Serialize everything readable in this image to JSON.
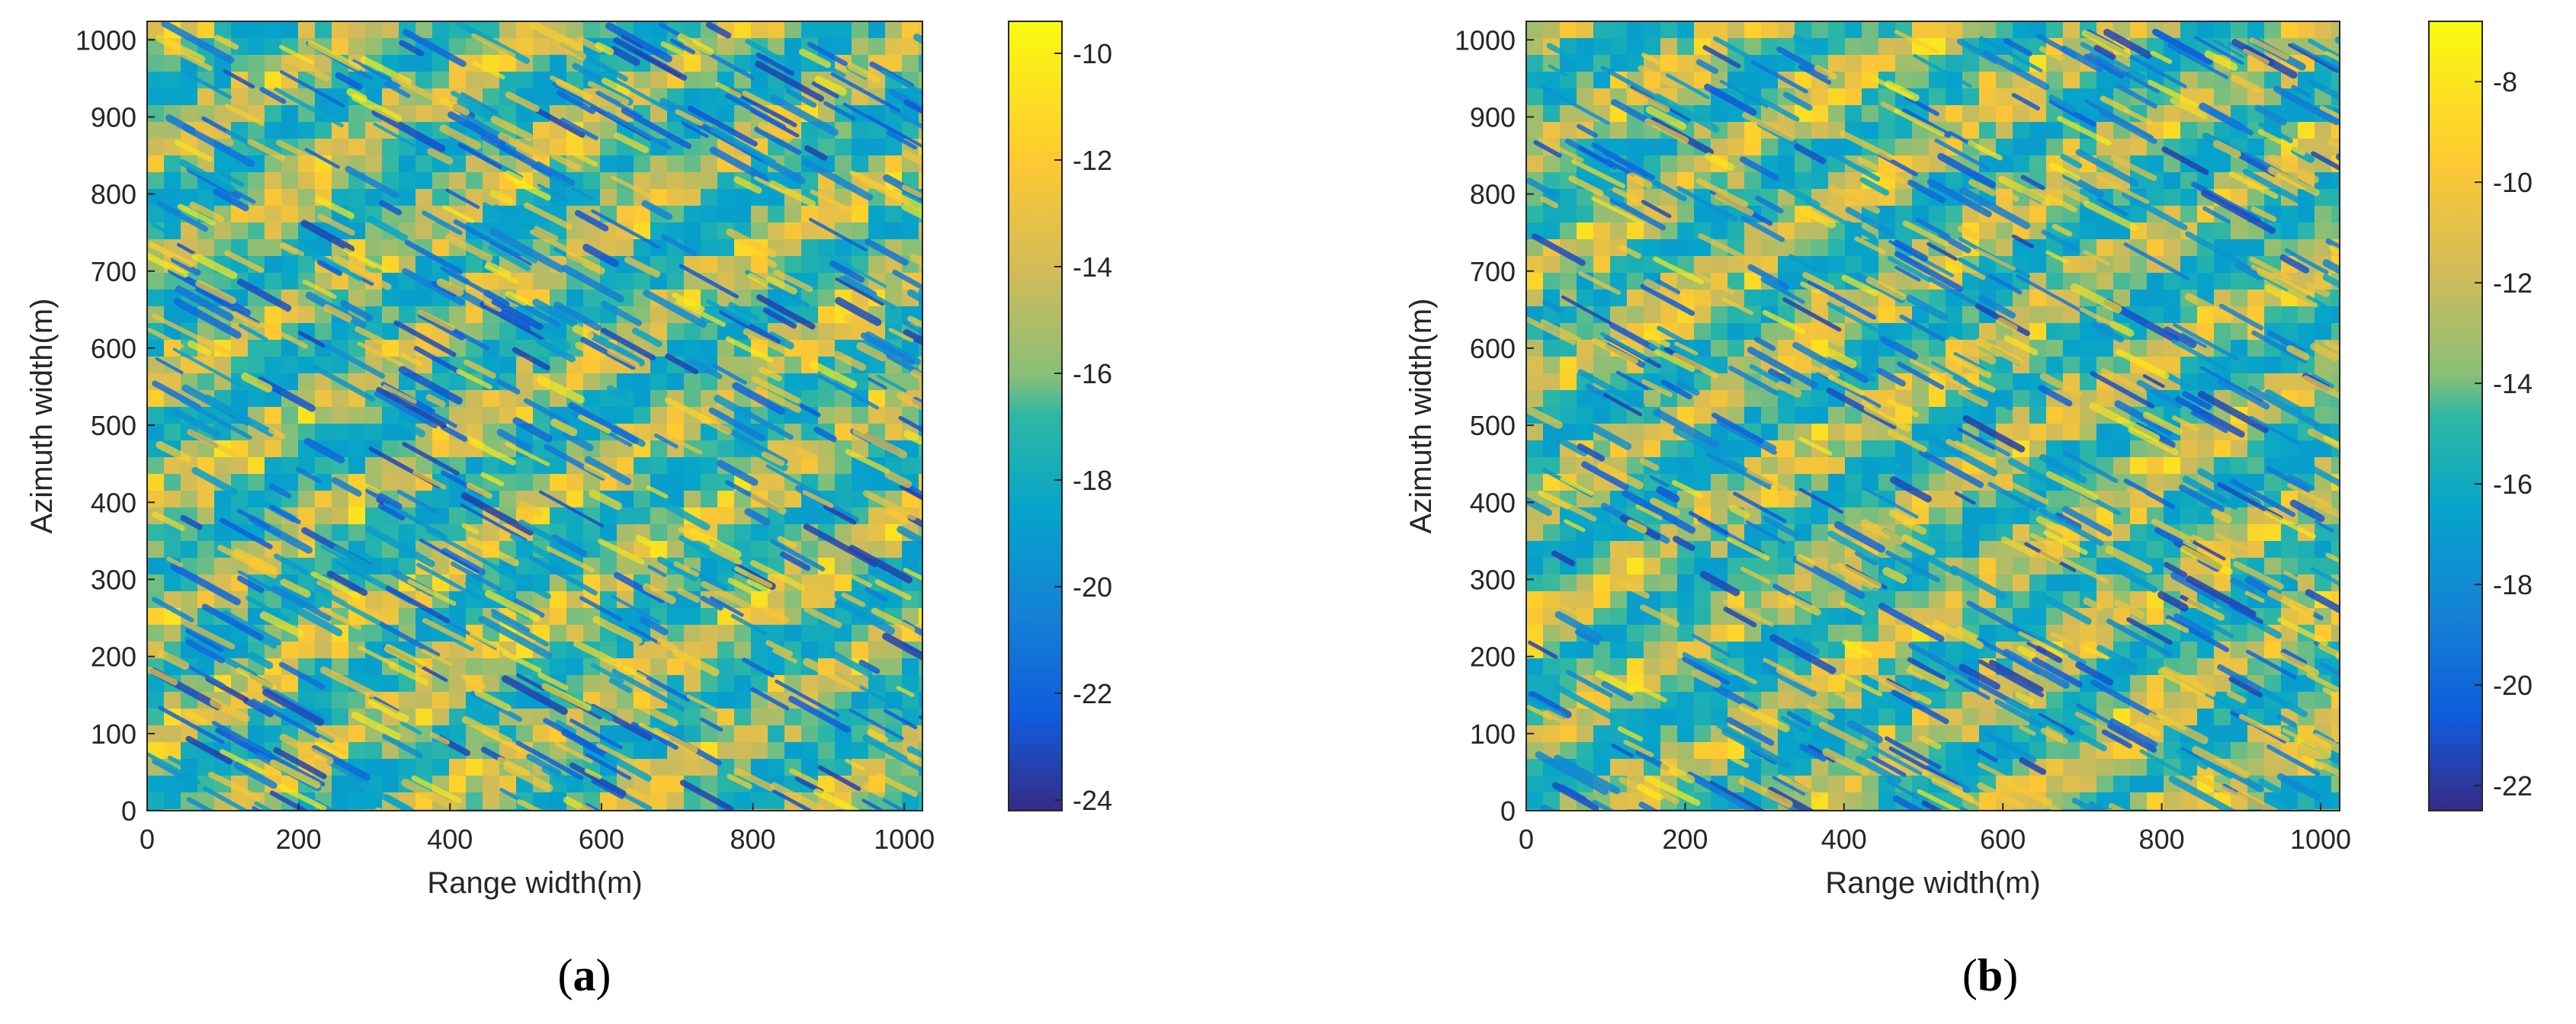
{
  "chart_data": [
    {
      "type": "heatmap",
      "caption": "a",
      "xlabel": "Range width(m)",
      "ylabel": "Azimuth width(m)",
      "xlim": [
        0,
        1024
      ],
      "ylim": [
        0,
        1024
      ],
      "xticks": [
        0,
        200,
        400,
        600,
        800,
        1000
      ],
      "yticks": [
        0,
        100,
        200,
        300,
        400,
        500,
        600,
        700,
        800,
        900,
        1000
      ],
      "colorbar": {
        "range": [
          -24.2,
          -9.4
        ],
        "ticks": [
          -10,
          -12,
          -14,
          -16,
          -18,
          -20,
          -22,
          -24
        ],
        "colormap": "parula"
      },
      "texture": "wind-driven sea-surface backscatter, wave crests oriented diagonally (upper-left to lower-right)"
    },
    {
      "type": "heatmap",
      "caption": "b",
      "xlabel": "Range width(m)",
      "ylabel": "Azimuth width(m)",
      "xlim": [
        0,
        1024
      ],
      "ylim": [
        0,
        1024
      ],
      "xticks": [
        0,
        200,
        400,
        600,
        800,
        1000
      ],
      "yticks": [
        0,
        100,
        200,
        300,
        400,
        500,
        600,
        700,
        800,
        900,
        1000
      ],
      "colorbar": {
        "range": [
          -22.5,
          -6.8
        ],
        "ticks": [
          -8,
          -10,
          -12,
          -14,
          -16,
          -18,
          -20,
          -22
        ],
        "colormap": "parula"
      },
      "texture": "wind-driven sea-surface backscatter, wave crests oriented diagonally (upper-left to lower-right)"
    }
  ],
  "colors": {
    "parula": [
      "#352a87",
      "#0f5cdd",
      "#1481d6",
      "#06a4ca",
      "#2eb7a4",
      "#87bf77",
      "#d1bb59",
      "#fec832",
      "#f9fb0e"
    ]
  }
}
